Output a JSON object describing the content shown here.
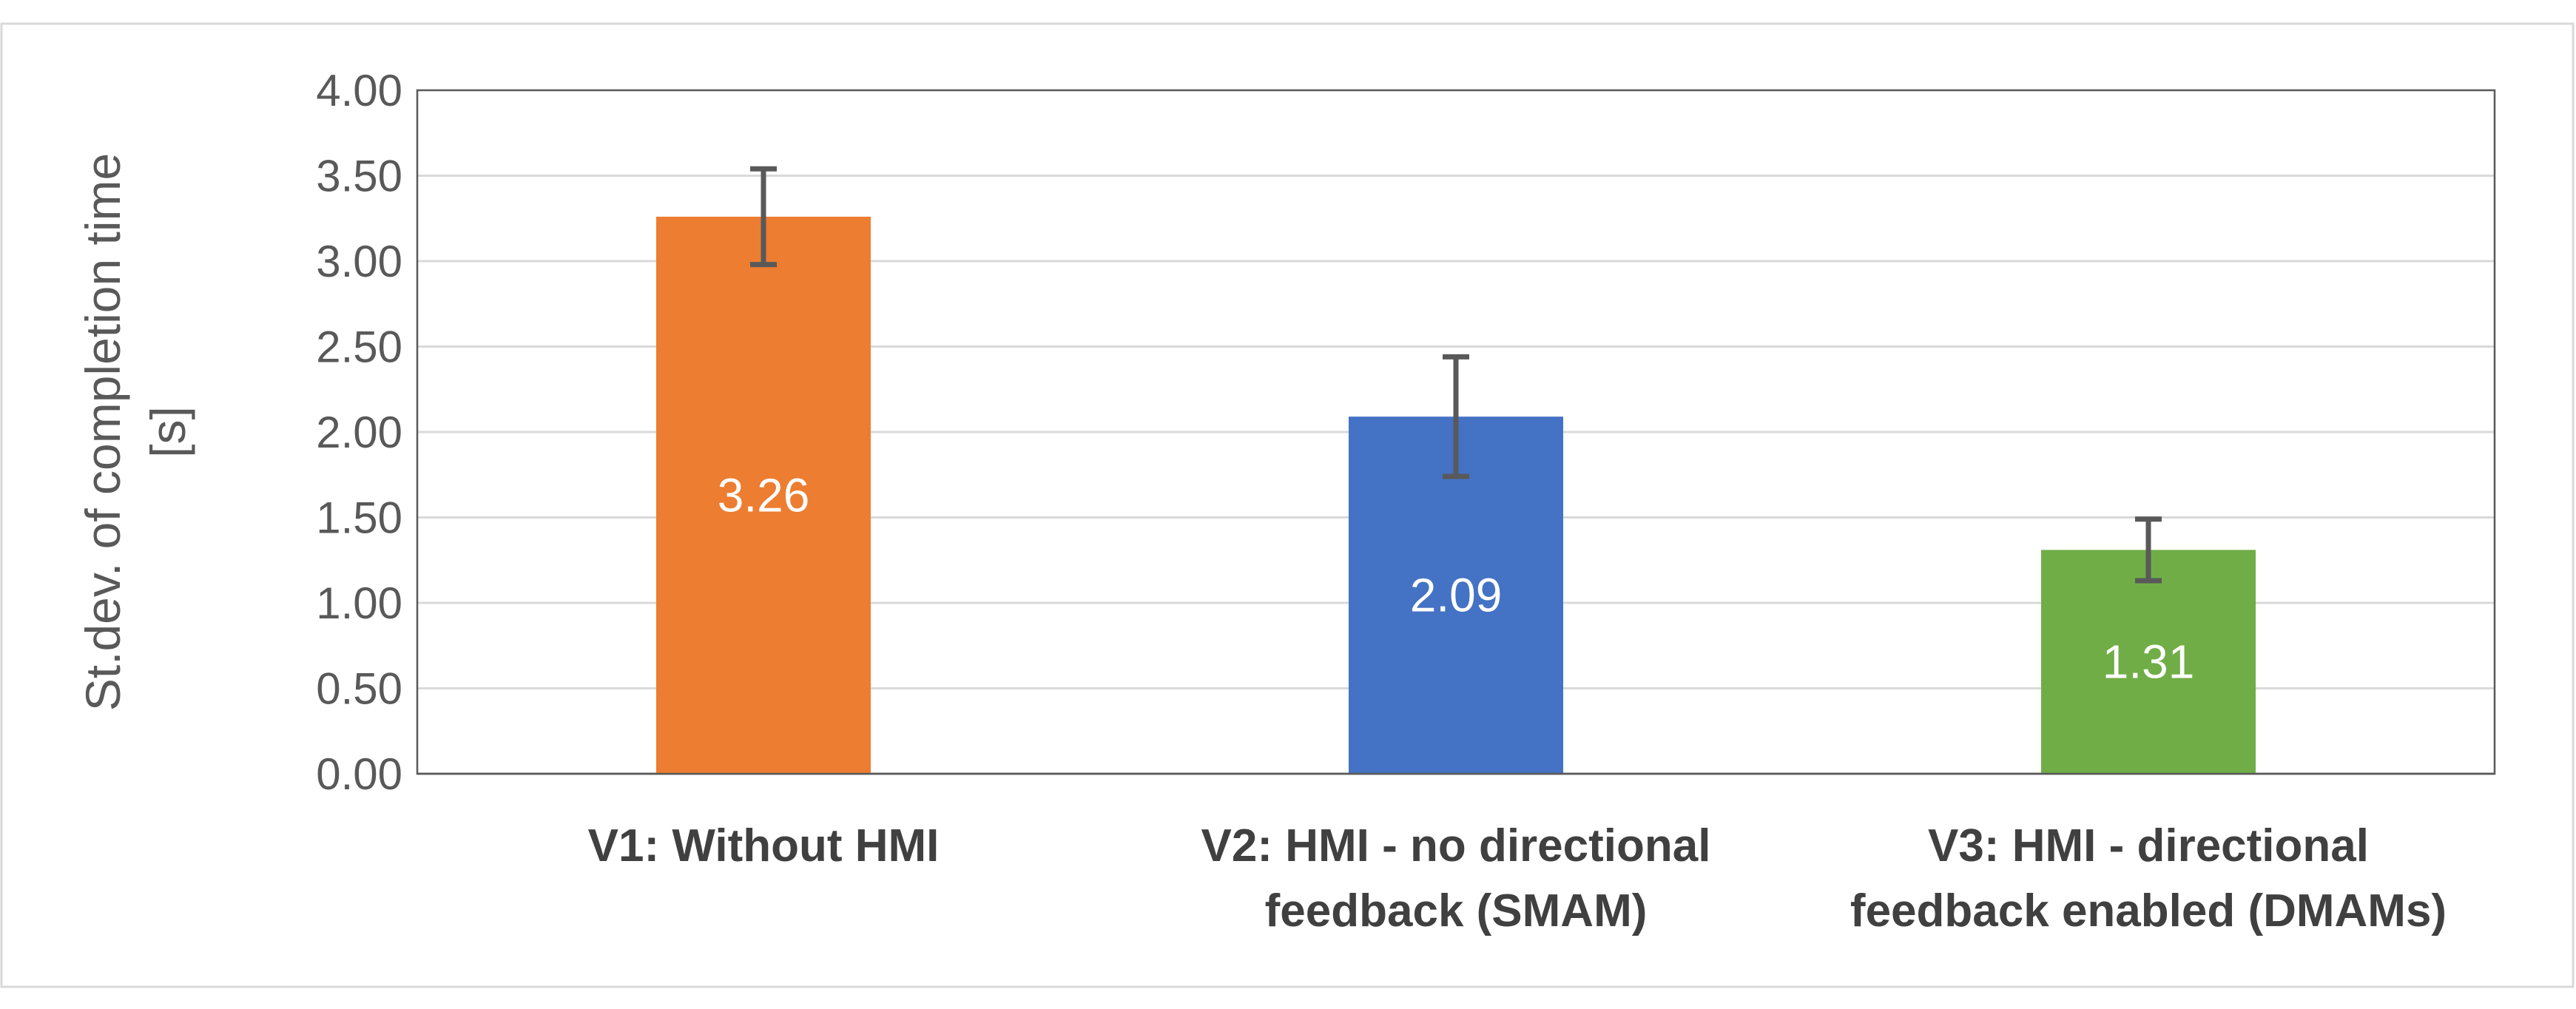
{
  "chart_data": {
    "type": "bar",
    "title": "",
    "ylabel_lines": [
      "St.dev. of completion time",
      "[s]"
    ],
    "xlabel": "",
    "ylim": [
      0,
      4
    ],
    "ytick_step": 0.5,
    "ytick_labels": [
      "0.00",
      "0.50",
      "1.00",
      "1.50",
      "2.00",
      "2.50",
      "3.00",
      "3.50",
      "4.00"
    ],
    "grid": true,
    "legend": "none",
    "categories": [
      [
        "V1: Without HMI"
      ],
      [
        "V2: HMI - no directional",
        "feedback (SMAM)"
      ],
      [
        "V3: HMI - directional",
        "feedback enabled (DMAMs)"
      ]
    ],
    "values": [
      3.26,
      2.09,
      1.31
    ],
    "value_labels": [
      "3.26",
      "2.09",
      "1.31"
    ],
    "error_low": [
      2.98,
      1.74,
      1.13
    ],
    "error_high": [
      3.54,
      2.44,
      1.49
    ],
    "colors": [
      "#ED7D31",
      "#4472C4",
      "#70AD47"
    ]
  }
}
